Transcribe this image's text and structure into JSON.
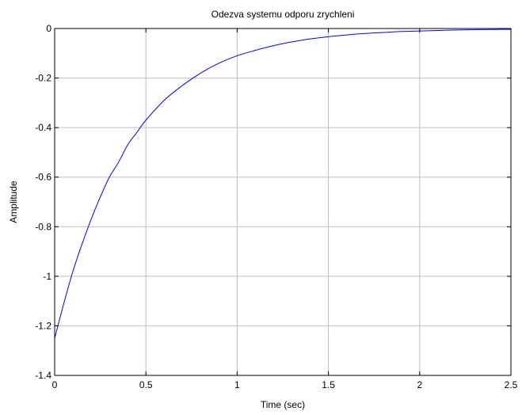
{
  "chart_data": {
    "type": "line",
    "title": "Odezva systemu odporu zrychleni",
    "xlabel": "Time (sec)",
    "ylabel": "Amplitude",
    "xlim": [
      0,
      2.5
    ],
    "ylim": [
      -1.4,
      0
    ],
    "grid": true,
    "x_ticks": [
      0,
      0.5,
      1,
      1.5,
      2,
      2.5
    ],
    "x_tick_labels": [
      "0",
      "0.5",
      "1",
      "1.5",
      "2",
      "2.5"
    ],
    "y_ticks": [
      0,
      -0.2,
      -0.4,
      -0.6,
      -0.8,
      -1,
      -1.2,
      -1.4
    ],
    "y_tick_labels": [
      "0",
      "-0.2",
      "-0.4",
      "-0.6",
      "-0.8",
      "-1",
      "-1.2",
      "-1.4"
    ],
    "series": [
      {
        "color": "#0000ff",
        "x": [
          0,
          0.05,
          0.1,
          0.15,
          0.2,
          0.25,
          0.3,
          0.35,
          0.4,
          0.45,
          0.5,
          0.6,
          0.7,
          0.8,
          0.9,
          1.0,
          1.1,
          1.2,
          1.3,
          1.4,
          1.5,
          1.6,
          1.7,
          1.8,
          1.9,
          2.0,
          2.1,
          2.2,
          2.3,
          2.4,
          2.5
        ],
        "values": [
          -1.25,
          -1.11,
          -0.98,
          -0.87,
          -0.77,
          -0.68,
          -0.6,
          -0.54,
          -0.47,
          -0.42,
          -0.37,
          -0.29,
          -0.23,
          -0.18,
          -0.14,
          -0.11,
          -0.088,
          -0.069,
          -0.054,
          -0.042,
          -0.033,
          -0.026,
          -0.02,
          -0.016,
          -0.012,
          -0.01,
          -0.008,
          -0.006,
          -0.005,
          -0.004,
          -0.003
        ]
      }
    ]
  }
}
